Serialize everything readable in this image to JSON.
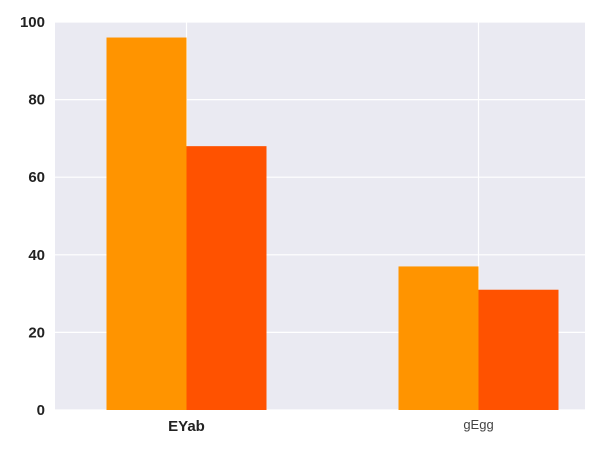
{
  "chart_data": {
    "type": "bar",
    "categories": [
      "EYab",
      "gEgg"
    ],
    "series": [
      {
        "color": "#ff9400",
        "values": [
          96,
          37
        ]
      },
      {
        "color": "#ff5200",
        "values": [
          68,
          31
        ]
      }
    ],
    "ylim": [
      0,
      100
    ],
    "yticks": [
      0,
      20,
      40,
      60,
      80,
      100
    ],
    "grid": true,
    "legend": false,
    "background": "#eaeaf2",
    "grid_color": "#ffffff"
  }
}
